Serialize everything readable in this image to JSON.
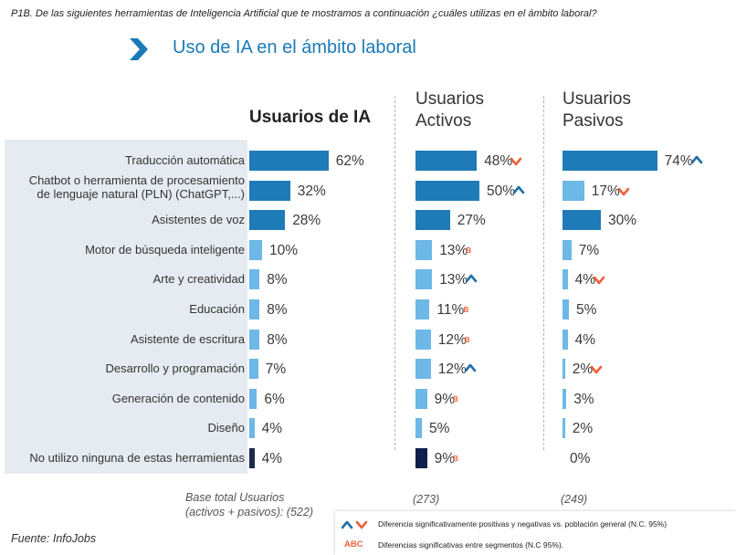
{
  "question": "P1B. De las siguientes herramientas de Inteligencia Artificial que te mostramos a continuación ¿cuáles utilizas en el ámbito laboral?",
  "header": {
    "title": "Uso de IA en el ámbito laboral"
  },
  "columns": [
    {
      "title": "Usuarios de IA",
      "base": "Base total Usuarios\n(activos + pasivos): (522)"
    },
    {
      "title": "Usuarios\nActivos",
      "base": "(273)"
    },
    {
      "title": "Usuarios\nPasivos",
      "base": "(249)"
    }
  ],
  "chart_data": {
    "type": "bar",
    "orientation": "horizontal",
    "title": "Uso de IA en el ámbito laboral",
    "unit": "%",
    "categories": [
      "Traducción automática",
      "Chatbot o herramienta de procesamiento\nde lenguaje natural (PLN) (ChatGPT,...)",
      "Asistentes de voz",
      "Motor de búsqueda inteligente",
      "Arte y creatividad",
      "Educación",
      "Asistente de escritura",
      "Desarrollo y programación",
      "Generación de contenido",
      "Diseño",
      "No utilizo ninguna de estas herramientas"
    ],
    "series": [
      {
        "name": "Usuarios de IA",
        "values": [
          62,
          32,
          28,
          10,
          8,
          8,
          8,
          7,
          6,
          4,
          4
        ],
        "labels": [
          "62%",
          "32%",
          "28%",
          "10%",
          "8%",
          "8%",
          "8%",
          "7%",
          "6%",
          "4%",
          "4%"
        ],
        "markers": [
          "",
          "",
          "",
          "",
          "",
          "",
          "",
          "",
          "",
          "",
          ""
        ],
        "colors": [
          "#1f7bb8",
          "#1f7bb8",
          "#1f7bb8",
          "#6db8e6",
          "#6db8e6",
          "#6db8e6",
          "#6db8e6",
          "#6db8e6",
          "#6db8e6",
          "#6db8e6",
          "#1b2a4a"
        ]
      },
      {
        "name": "Usuarios Activos",
        "values": [
          48,
          50,
          27,
          13,
          13,
          11,
          12,
          12,
          9,
          5,
          9
        ],
        "labels": [
          "48%",
          "50%",
          "27%",
          "13%",
          "13%",
          "11%",
          "12%",
          "12%",
          "9%",
          "5%",
          "9%"
        ],
        "markers": [
          "down",
          "up",
          "",
          "B",
          "up",
          "B",
          "B",
          "up",
          "B",
          "",
          "B"
        ],
        "colors": [
          "#1f7bb8",
          "#1f7bb8",
          "#1f7bb8",
          "#6db8e6",
          "#6db8e6",
          "#6db8e6",
          "#6db8e6",
          "#6db8e6",
          "#6db8e6",
          "#6db8e6",
          "#0d1f4a"
        ]
      },
      {
        "name": "Usuarios Pasivos",
        "values": [
          74,
          17,
          30,
          7,
          4,
          5,
          4,
          2,
          3,
          2,
          0
        ],
        "labels": [
          "74%",
          "17%",
          "30%",
          "7%",
          "4%",
          "5%",
          "4%",
          "2%",
          "3%",
          "2%",
          "0%"
        ],
        "markers": [
          "up",
          "down",
          "",
          "",
          "down",
          "",
          "",
          "down",
          "",
          "",
          ""
        ],
        "colors": [
          "#1f7bb8",
          "#6db8e6",
          "#1f7bb8",
          "#6db8e6",
          "#6db8e6",
          "#6db8e6",
          "#6db8e6",
          "#6db8e6",
          "#6db8e6",
          "#6db8e6",
          "#6db8e6"
        ]
      }
    ],
    "xlim": [
      0,
      100
    ]
  },
  "legend": {
    "arrows_text": "Diferencia significativamente  positivas y negativas vs. población general (N.C. 95%)",
    "abc_label": "ABC",
    "abc_text": "Diferencias significativas entre segmentos (N.C 95%)."
  },
  "colors": {
    "up": "#1f6fa8",
    "down": "#f0603b",
    "accent": "#1a7ab8"
  },
  "source": "Fuente: InfoJobs"
}
